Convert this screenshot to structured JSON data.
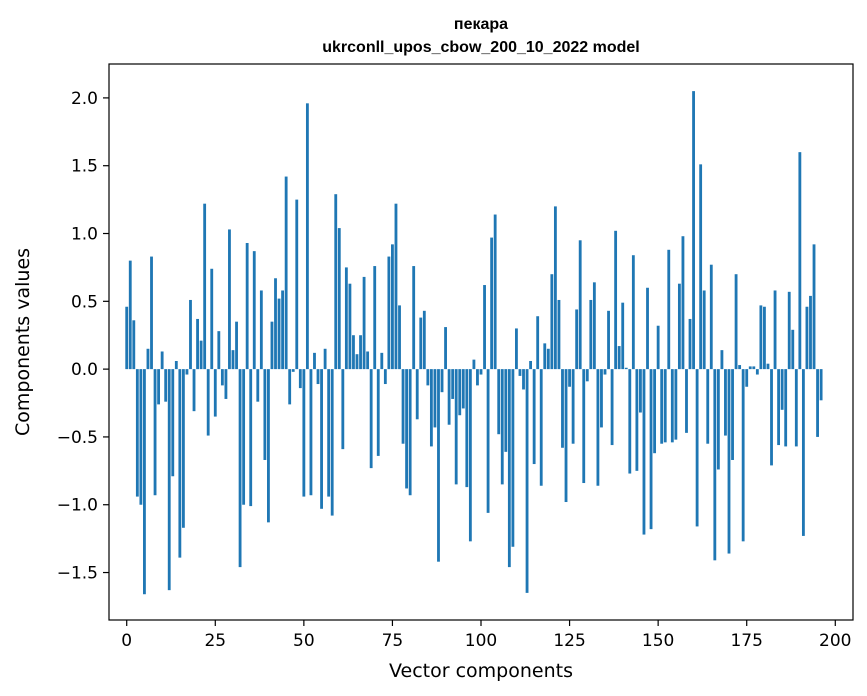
{
  "chart_data": {
    "type": "bar",
    "title_line1": "пекара",
    "title_line2": "ukrconll_upos_cbow_200_10_2022 model",
    "xlabel": "Vector components",
    "ylabel": "Components values",
    "xlim": [
      -5,
      205
    ],
    "ylim": [
      -1.85,
      2.25
    ],
    "xticks": [
      0,
      25,
      50,
      75,
      100,
      125,
      150,
      175,
      200
    ],
    "yticks": [
      -1.5,
      -1.0,
      -0.5,
      0.0,
      0.5,
      1.0,
      1.5,
      2.0
    ],
    "ytick_labels": [
      "−1.5",
      "−1.0",
      "−0.5",
      "0.0",
      "0.5",
      "1.0",
      "1.5",
      "2.0"
    ],
    "bar_color": "#1f77b4",
    "values": [
      0.46,
      0.8,
      0.36,
      -0.94,
      -1.0,
      -1.66,
      0.15,
      0.83,
      -0.93,
      -0.26,
      0.13,
      -0.24,
      -1.63,
      -0.79,
      0.06,
      -1.39,
      -1.17,
      -0.04,
      0.51,
      -0.31,
      0.37,
      0.21,
      1.22,
      -0.49,
      0.74,
      -0.35,
      0.28,
      -0.12,
      -0.22,
      1.03,
      0.14,
      0.35,
      -1.46,
      -1.0,
      0.93,
      -1.01,
      0.87,
      -0.24,
      0.58,
      -0.67,
      -1.13,
      0.35,
      0.67,
      0.52,
      0.58,
      1.42,
      -0.26,
      -0.02,
      1.25,
      -0.14,
      -0.94,
      1.96,
      -0.93,
      0.12,
      -0.11,
      -1.03,
      0.15,
      -0.94,
      -1.08,
      1.29,
      1.04,
      -0.59,
      0.75,
      0.63,
      0.25,
      0.11,
      0.25,
      0.68,
      0.13,
      -0.73,
      0.76,
      -0.64,
      0.12,
      -0.11,
      0.83,
      0.92,
      1.22,
      0.47,
      -0.55,
      -0.88,
      -0.93,
      0.76,
      -0.37,
      0.38,
      0.43,
      -0.12,
      -0.57,
      -0.43,
      -1.42,
      -0.17,
      0.31,
      -0.41,
      -0.22,
      -0.85,
      -0.34,
      -0.29,
      -0.87,
      -1.27,
      0.07,
      -0.12,
      -0.04,
      0.62,
      -1.06,
      0.97,
      1.14,
      -0.48,
      -0.85,
      -0.61,
      -1.46,
      -1.31,
      0.3,
      -0.05,
      -0.15,
      -1.65,
      0.06,
      -0.7,
      0.39,
      -0.86,
      0.19,
      0.15,
      0.7,
      1.2,
      0.51,
      -0.58,
      -0.98,
      -0.13,
      -0.55,
      0.44,
      0.95,
      -0.84,
      -0.09,
      0.51,
      0.64,
      -0.86,
      -0.43,
      -0.04,
      0.43,
      -0.56,
      1.02,
      0.17,
      0.49,
      0.01,
      -0.77,
      0.84,
      -0.75,
      -0.32,
      -1.22,
      0.6,
      -1.18,
      -0.62,
      0.32,
      -0.55,
      -0.54,
      0.88,
      -0.54,
      -0.52,
      0.63,
      0.98,
      -0.47,
      0.37,
      2.05,
      -1.16,
      1.51,
      0.58,
      -0.55,
      0.77,
      -1.41,
      -0.74,
      0.14,
      -0.49,
      -1.36,
      -0.67,
      0.7,
      0.03,
      -1.27,
      -0.13,
      0.02,
      0.02,
      -0.04,
      0.47,
      0.46,
      0.04,
      -0.71,
      0.58,
      -0.56,
      -0.3,
      -0.57,
      0.57,
      0.29,
      -0.57,
      1.6,
      -1.23,
      0.46,
      0.54,
      0.92,
      -0.5,
      -0.23
    ]
  }
}
